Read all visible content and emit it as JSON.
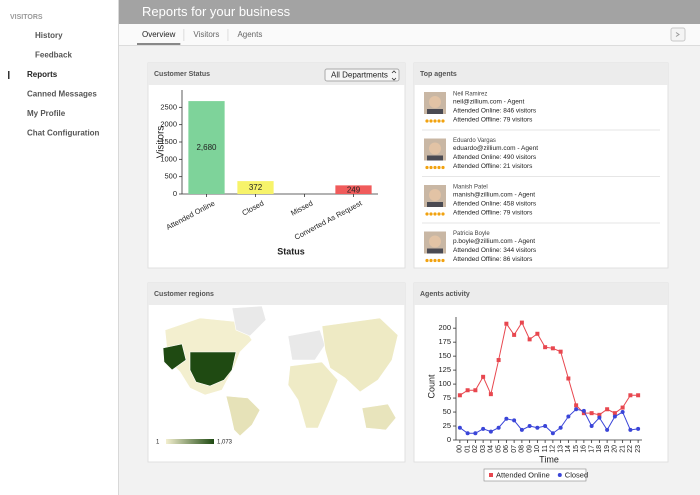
{
  "sidebar": {
    "section": "VISITORS",
    "items": [
      "History",
      "Feedback",
      "Reports",
      "Canned Messages",
      "My Profile",
      "Chat Configuration"
    ],
    "active": 2
  },
  "header": {
    "title": "Reports for your business",
    "tabs": [
      "Overview",
      "Visitors",
      "Agents"
    ],
    "active_tab": 0
  },
  "chart_data": [
    {
      "type": "bar",
      "title": "Customer Status",
      "dropdown": "All Departments",
      "categories": [
        "Attended Online",
        "Closed",
        "Missed",
        "Converted As Request"
      ],
      "values": [
        2680,
        372,
        0,
        249
      ],
      "value_labels": [
        "2,680",
        "372",
        null,
        "249"
      ],
      "colors": [
        "#7ed39a",
        "#f7f36a",
        "#cccccc",
        "#f05b5b"
      ],
      "ylim": [
        0,
        3000
      ],
      "yticks": [
        0,
        500,
        1000,
        1500,
        2000,
        2500
      ],
      "ylabel": "Visitors",
      "xlabel": "Status"
    },
    {
      "type": "line",
      "title": "Agents activity",
      "categories": [
        "00",
        "01",
        "02",
        "03",
        "04",
        "05",
        "06",
        "07",
        "08",
        "09",
        "10",
        "11",
        "12",
        "13",
        "14",
        "15",
        "16",
        "17",
        "18",
        "19",
        "20",
        "21",
        "22",
        "23"
      ],
      "series": [
        {
          "name": "Attended Online",
          "color": "#e8474f",
          "marker": "square",
          "values": [
            80,
            89,
            89,
            113,
            82,
            143,
            208,
            188,
            210,
            180,
            190,
            166,
            164,
            158,
            110,
            62,
            48,
            48,
            45,
            55,
            48,
            58,
            80,
            80
          ]
        },
        {
          "name": "Closed",
          "color": "#3a45d8",
          "marker": "circle",
          "values": [
            22,
            12,
            12,
            20,
            15,
            22,
            38,
            35,
            18,
            25,
            22,
            25,
            12,
            22,
            42,
            55,
            52,
            25,
            40,
            18,
            42,
            50,
            18,
            20
          ]
        }
      ],
      "ylim": [
        0,
        220
      ],
      "yticks": [
        0,
        25,
        50,
        75,
        100,
        125,
        150,
        175,
        200
      ],
      "ylabel": "Count",
      "xlabel": "Time",
      "legend": "bottom"
    }
  ],
  "agents": {
    "title": "Top agents",
    "list": [
      {
        "name": "Neil Ramirez",
        "email": "neil@zillium.com - Agent",
        "online": "Attended Online: 846 visitors",
        "offline": "Attended Offline: 79 visitors"
      },
      {
        "name": "Eduardo Vargas",
        "email": "eduardo@zillium.com - Agent",
        "online": "Attended Online: 490 visitors",
        "offline": "Attended Offline: 21 visitors"
      },
      {
        "name": "Manish Patel",
        "email": "manish@zillium.com - Agent",
        "online": "Attended Online: 458 visitors",
        "offline": "Attended Offline: 79 visitors"
      },
      {
        "name": "Patricia Boyle",
        "email": "p.boyle@zillium.com - Agent",
        "online": "Attended Online: 344 visitors",
        "offline": "Attended Offline: 86 visitors"
      }
    ]
  },
  "regions": {
    "title": "Customer regions",
    "scale": [
      {
        "value": 1,
        "label": "1"
      },
      {
        "value": 1073,
        "label": "1,073"
      }
    ]
  }
}
